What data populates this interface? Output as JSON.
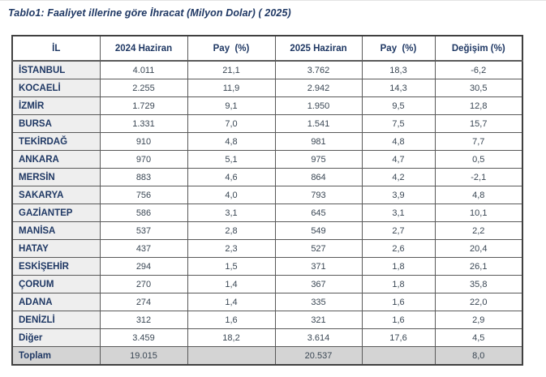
{
  "title": "Tablo1: Faaliyet illerine göre İhracat (Milyon Dolar) ( 2025)",
  "colors": {
    "title_text": "#1f3864",
    "label_text": "#1f3864",
    "number_text": "#3a4754",
    "inner_border": "#595959",
    "outer_border": "#404040",
    "first_column_bg": "#eeeeee",
    "total_row_bg": "#d4d4d4",
    "header_bg": "#ffffff"
  },
  "table": {
    "headers": [
      "İL",
      "2024 Haziran",
      "Pay  (%)",
      "2025 Haziran",
      "Pay  (%)",
      "Değişim (%)"
    ],
    "rows": [
      {
        "il": "İSTANBUL",
        "values": [
          "4.011",
          "21,1",
          "3.762",
          "18,3",
          "-6,2"
        ],
        "is_total": false
      },
      {
        "il": "KOCAELİ",
        "values": [
          "2.255",
          "11,9",
          "2.942",
          "14,3",
          "30,5"
        ],
        "is_total": false
      },
      {
        "il": "İZMİR",
        "values": [
          "1.729",
          "9,1",
          "1.950",
          "9,5",
          "12,8"
        ],
        "is_total": false
      },
      {
        "il": "BURSA",
        "values": [
          "1.331",
          "7,0",
          "1.541",
          "7,5",
          "15,7"
        ],
        "is_total": false
      },
      {
        "il": "TEKİRDAĞ",
        "values": [
          "910",
          "4,8",
          "981",
          "4,8",
          "7,7"
        ],
        "is_total": false
      },
      {
        "il": "ANKARA",
        "values": [
          "970",
          "5,1",
          "975",
          "4,7",
          "0,5"
        ],
        "is_total": false
      },
      {
        "il": "MERSİN",
        "values": [
          "883",
          "4,6",
          "864",
          "4,2",
          "-2,1"
        ],
        "is_total": false
      },
      {
        "il": "SAKARYA",
        "values": [
          "756",
          "4,0",
          "793",
          "3,9",
          "4,8"
        ],
        "is_total": false
      },
      {
        "il": "GAZİANTEP",
        "values": [
          "586",
          "3,1",
          "645",
          "3,1",
          "10,1"
        ],
        "is_total": false
      },
      {
        "il": "MANİSA",
        "values": [
          "537",
          "2,8",
          "549",
          "2,7",
          "2,2"
        ],
        "is_total": false
      },
      {
        "il": "HATAY",
        "values": [
          "437",
          "2,3",
          "527",
          "2,6",
          "20,4"
        ],
        "is_total": false
      },
      {
        "il": "ESKİŞEHİR",
        "values": [
          "294",
          "1,5",
          "371",
          "1,8",
          "26,1"
        ],
        "is_total": false
      },
      {
        "il": "ÇORUM",
        "values": [
          "270",
          "1,4",
          "367",
          "1,8",
          "35,8"
        ],
        "is_total": false
      },
      {
        "il": "ADANA",
        "values": [
          "274",
          "1,4",
          "335",
          "1,6",
          "22,0"
        ],
        "is_total": false
      },
      {
        "il": "DENİZLİ",
        "values": [
          "312",
          "1,6",
          "321",
          "1,6",
          "2,9"
        ],
        "is_total": false
      },
      {
        "il": "Diğer",
        "values": [
          "3.459",
          "18,2",
          "3.614",
          "17,6",
          "4,5"
        ],
        "is_total": false
      },
      {
        "il": "Toplam",
        "values": [
          "19.015",
          "",
          "20.537",
          "",
          "8,0"
        ],
        "is_total": true
      }
    ]
  }
}
